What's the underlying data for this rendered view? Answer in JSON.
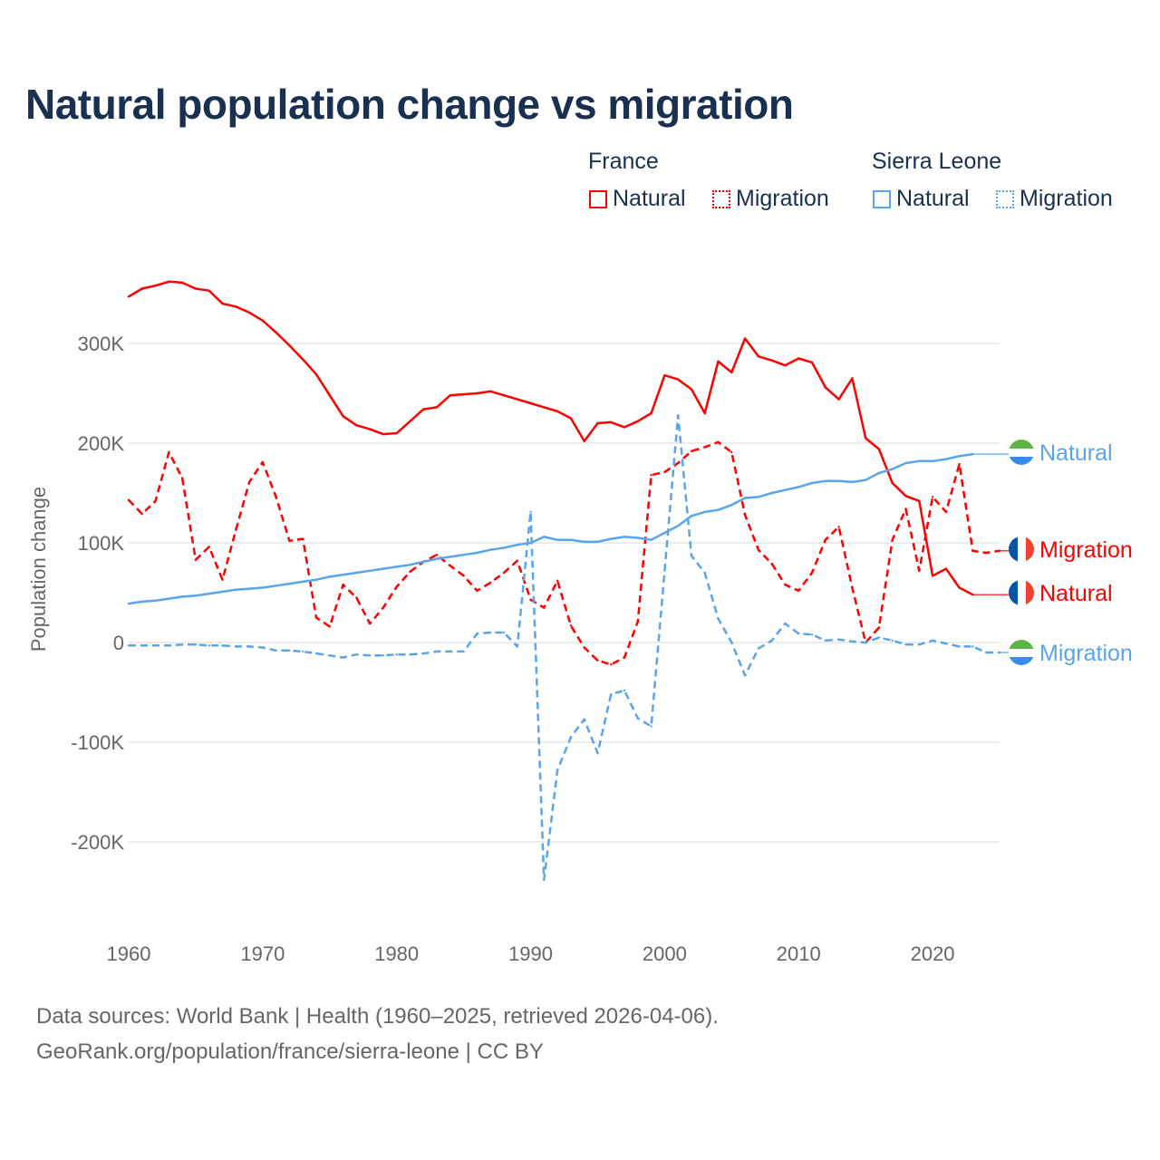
{
  "chart_data": {
    "type": "line",
    "title": "Natural population change vs migration",
    "xlabel": "",
    "ylabel": "Population change",
    "xlim": [
      1960,
      2025
    ],
    "ylim": [
      -250000,
      380000
    ],
    "x_ticks": [
      "1960",
      "1970",
      "1980",
      "1990",
      "2000",
      "2010",
      "2020"
    ],
    "y_ticks": [
      {
        "v": 300000,
        "label": "300K"
      },
      {
        "v": 200000,
        "label": "200K"
      },
      {
        "v": 100000,
        "label": "100K"
      },
      {
        "v": 0,
        "label": "0"
      },
      {
        "v": -100000,
        "label": "-100K"
      },
      {
        "v": -200000,
        "label": "-200K"
      }
    ],
    "grid": true,
    "legend": {
      "placement": "top-right",
      "groups": [
        {
          "name": "France",
          "items": [
            "Natural",
            "Migration"
          ]
        },
        {
          "name": "Sierra Leone",
          "items": [
            "Natural",
            "Migration"
          ]
        }
      ]
    },
    "series": [
      {
        "name": "France Natural",
        "country": "France",
        "kind": "Natural",
        "color": "#ff0000",
        "dash": false,
        "start": 1960,
        "extend_to": 2025,
        "end_label": "Natural",
        "values": [
          347,
          355,
          358,
          362,
          361,
          355,
          353,
          340,
          337,
          331,
          323,
          311,
          298,
          284,
          269,
          248,
          227,
          218,
          214,
          209,
          210,
          222,
          234,
          236,
          248,
          249,
          250,
          252,
          248,
          244,
          240,
          236,
          232,
          225,
          202,
          220,
          221,
          216,
          222,
          230,
          268,
          264,
          254,
          230,
          282,
          271,
          305,
          287,
          283,
          278,
          285,
          281,
          256,
          244,
          265,
          205,
          194,
          160,
          147,
          142,
          67,
          74,
          55,
          48
        ]
      },
      {
        "name": "France Migration",
        "country": "France",
        "kind": "Migration",
        "color": "#ff0000",
        "dash": true,
        "start": 1960,
        "extend_to": 2025,
        "end_label": "Migration",
        "values": [
          143,
          129,
          142,
          191,
          165,
          83,
          96,
          63,
          113,
          161,
          181,
          146,
          102,
          104,
          25,
          16,
          58,
          45,
          19,
          35,
          56,
          71,
          81,
          88,
          77,
          67,
          52,
          60,
          70,
          82,
          43,
          35,
          62,
          17,
          -5,
          -18,
          -22,
          -15,
          21,
          168,
          171,
          180,
          192,
          196,
          201,
          191,
          128,
          93,
          79,
          58,
          52,
          70,
          103,
          116,
          55,
          0,
          15,
          103,
          134,
          72,
          146,
          131,
          179,
          92,
          90,
          92
        ]
      },
      {
        "name": "Sierra Leone Natural",
        "country": "Sierra Leone",
        "kind": "Natural",
        "color": "#5aa5ea",
        "dash": false,
        "start": 1960,
        "extend_to": 2025,
        "end_label": "Natural",
        "values": [
          39,
          41,
          42,
          44,
          46,
          47,
          49,
          51,
          53,
          54,
          55,
          57,
          59,
          61,
          63,
          66,
          68,
          70,
          72,
          74,
          76,
          78,
          81,
          84,
          86,
          88,
          90,
          93,
          95,
          98,
          100,
          106,
          103,
          103,
          101,
          101,
          104,
          106,
          105,
          103,
          110,
          117,
          127,
          131,
          133,
          138,
          145,
          146,
          150,
          153,
          156,
          160,
          162,
          162,
          161,
          163,
          170,
          174,
          180,
          182,
          182,
          184,
          187,
          189
        ]
      },
      {
        "name": "Sierra Leone Migration",
        "country": "Sierra Leone",
        "kind": "Migration",
        "color": "#5aa5ea",
        "dash": true,
        "start": 1960,
        "extend_to": 2025,
        "end_label": "Migration",
        "values": [
          -3,
          -3,
          -3,
          -3,
          -2,
          -2,
          -3,
          -3,
          -4,
          -4,
          -5,
          -8,
          -8,
          -9,
          -11,
          -13,
          -15,
          -12,
          -13,
          -13,
          -12,
          -12,
          -11,
          -9,
          -9,
          -9,
          9,
          10,
          10,
          -4,
          131,
          -238,
          -128,
          -95,
          -77,
          -111,
          -52,
          -48,
          -76,
          -84,
          72,
          228,
          87,
          70,
          24,
          0,
          -33,
          -6,
          2,
          19,
          9,
          8,
          2,
          3,
          1,
          0,
          5,
          2,
          -2,
          -2,
          2,
          -1,
          -4,
          -4,
          -10,
          -10
        ]
      }
    ],
    "value_unit": "thousands"
  },
  "legend": {
    "france": "France",
    "sierra_leone": "Sierra Leone",
    "natural": "Natural",
    "migration": "Migration"
  },
  "footer": {
    "line1": "Data sources: World Bank | Health (1960–2025, retrieved 2026-04-06).",
    "line2": "GeoRank.org/population/france/sierra-leone | CC BY"
  }
}
